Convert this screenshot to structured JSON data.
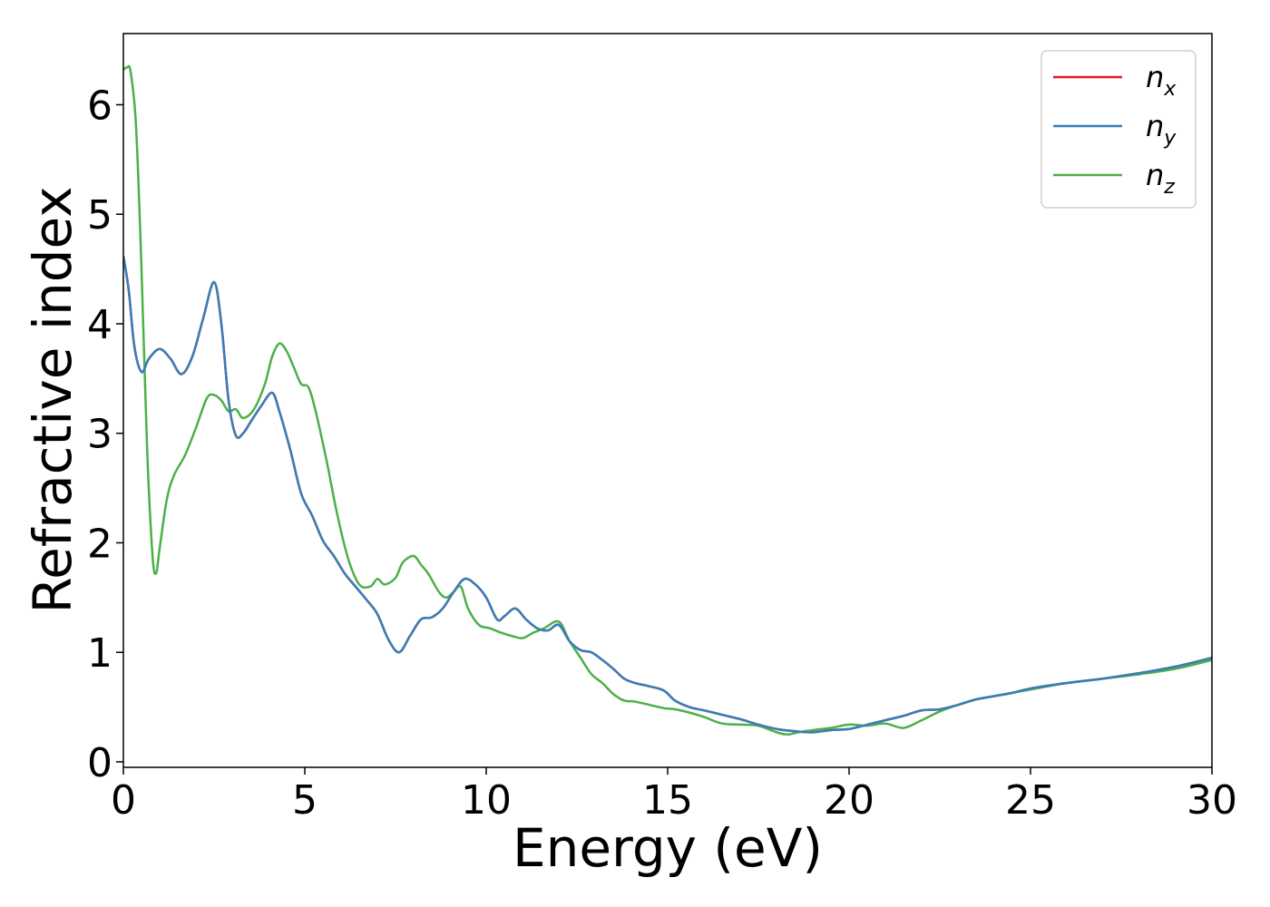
{
  "chart_data": {
    "type": "line",
    "xlabel": "Energy (eV)",
    "ylabel": "Refractive index",
    "xlim": [
      0,
      30
    ],
    "ylim": [
      -0.05,
      6.65
    ],
    "x_ticks": [
      0,
      5,
      10,
      15,
      20,
      25,
      30
    ],
    "y_ticks": [
      0,
      1,
      2,
      3,
      4,
      5,
      6
    ],
    "grid": false,
    "legend_position": "top-right",
    "series": [
      {
        "name": "n",
        "subscript": "x",
        "color": "#e41a1c",
        "x": [
          0,
          0.15,
          0.3,
          0.5,
          0.7,
          1.0,
          1.3,
          1.6,
          1.9,
          2.2,
          2.5,
          2.7,
          2.9,
          3.1,
          3.3,
          3.5,
          3.8,
          4.1,
          4.3,
          4.6,
          4.9,
          5.2,
          5.5,
          5.8,
          6.1,
          6.4,
          6.7,
          7.0,
          7.3,
          7.6,
          7.9,
          8.2,
          8.5,
          8.8,
          9.1,
          9.4,
          9.7,
          10.0,
          10.3,
          10.5,
          10.8,
          11.1,
          11.4,
          11.7,
          12.0,
          12.3,
          12.6,
          12.9,
          13.2,
          13.5,
          13.8,
          14.1,
          14.5,
          14.9,
          15.2,
          15.6,
          16.0,
          16.5,
          17.0,
          17.5,
          18.0,
          18.5,
          19.0,
          19.5,
          20.0,
          20.5,
          21.0,
          21.5,
          22.0,
          22.5,
          23.0,
          23.5,
          24.0,
          24.5,
          25.0,
          26.0,
          27.0,
          28.0,
          29.0,
          30.0
        ],
        "y": [
          4.62,
          4.3,
          3.8,
          3.56,
          3.68,
          3.77,
          3.68,
          3.54,
          3.7,
          4.05,
          4.38,
          4.0,
          3.3,
          2.98,
          3.0,
          3.1,
          3.25,
          3.37,
          3.2,
          2.85,
          2.45,
          2.25,
          2.02,
          1.88,
          1.72,
          1.6,
          1.48,
          1.35,
          1.12,
          1.0,
          1.15,
          1.3,
          1.32,
          1.4,
          1.55,
          1.67,
          1.62,
          1.5,
          1.3,
          1.33,
          1.4,
          1.3,
          1.22,
          1.2,
          1.25,
          1.1,
          1.02,
          1.0,
          0.93,
          0.85,
          0.76,
          0.72,
          0.69,
          0.65,
          0.56,
          0.5,
          0.47,
          0.43,
          0.39,
          0.34,
          0.3,
          0.28,
          0.27,
          0.29,
          0.3,
          0.34,
          0.38,
          0.42,
          0.47,
          0.48,
          0.52,
          0.57,
          0.6,
          0.63,
          0.67,
          0.72,
          0.76,
          0.81,
          0.87,
          0.95
        ]
      },
      {
        "name": "n",
        "subscript": "y",
        "color": "#377eb8",
        "x": [
          0,
          0.15,
          0.3,
          0.5,
          0.7,
          1.0,
          1.3,
          1.6,
          1.9,
          2.2,
          2.5,
          2.7,
          2.9,
          3.1,
          3.3,
          3.5,
          3.8,
          4.1,
          4.3,
          4.6,
          4.9,
          5.2,
          5.5,
          5.8,
          6.1,
          6.4,
          6.7,
          7.0,
          7.3,
          7.6,
          7.9,
          8.2,
          8.5,
          8.8,
          9.1,
          9.4,
          9.7,
          10.0,
          10.3,
          10.5,
          10.8,
          11.1,
          11.4,
          11.7,
          12.0,
          12.3,
          12.6,
          12.9,
          13.2,
          13.5,
          13.8,
          14.1,
          14.5,
          14.9,
          15.2,
          15.6,
          16.0,
          16.5,
          17.0,
          17.5,
          18.0,
          18.5,
          19.0,
          19.5,
          20.0,
          20.5,
          21.0,
          21.5,
          22.0,
          22.5,
          23.0,
          23.5,
          24.0,
          24.5,
          25.0,
          26.0,
          27.0,
          28.0,
          29.0,
          30.0
        ],
        "y": [
          4.62,
          4.3,
          3.8,
          3.56,
          3.68,
          3.77,
          3.68,
          3.54,
          3.7,
          4.05,
          4.38,
          4.0,
          3.3,
          2.98,
          3.0,
          3.1,
          3.25,
          3.37,
          3.2,
          2.85,
          2.45,
          2.25,
          2.02,
          1.88,
          1.72,
          1.6,
          1.48,
          1.35,
          1.12,
          1.0,
          1.15,
          1.3,
          1.32,
          1.4,
          1.55,
          1.67,
          1.62,
          1.5,
          1.3,
          1.33,
          1.4,
          1.3,
          1.22,
          1.2,
          1.25,
          1.1,
          1.02,
          1.0,
          0.93,
          0.85,
          0.76,
          0.72,
          0.69,
          0.65,
          0.56,
          0.5,
          0.47,
          0.43,
          0.39,
          0.34,
          0.3,
          0.28,
          0.27,
          0.29,
          0.3,
          0.34,
          0.38,
          0.42,
          0.47,
          0.48,
          0.52,
          0.57,
          0.6,
          0.63,
          0.67,
          0.72,
          0.76,
          0.81,
          0.87,
          0.95
        ]
      },
      {
        "name": "n",
        "subscript": "z",
        "color": "#4daf4a",
        "x": [
          0,
          0.1,
          0.2,
          0.35,
          0.5,
          0.65,
          0.8,
          0.9,
          1.0,
          1.2,
          1.4,
          1.7,
          2.0,
          2.3,
          2.5,
          2.7,
          2.9,
          3.1,
          3.3,
          3.6,
          3.9,
          4.1,
          4.3,
          4.5,
          4.7,
          4.9,
          5.1,
          5.3,
          5.6,
          5.9,
          6.2,
          6.5,
          6.8,
          7.0,
          7.2,
          7.5,
          7.7,
          8.0,
          8.2,
          8.4,
          8.7,
          8.9,
          9.1,
          9.3,
          9.5,
          9.8,
          10.1,
          10.4,
          10.7,
          11.0,
          11.3,
          11.6,
          12.0,
          12.3,
          12.6,
          12.9,
          13.2,
          13.5,
          13.8,
          14.1,
          14.5,
          14.9,
          15.2,
          15.6,
          16.0,
          16.5,
          17.0,
          17.5,
          18.0,
          18.3,
          18.6,
          19.0,
          19.5,
          20.0,
          20.5,
          21.0,
          21.5,
          22.0,
          22.5,
          23.0,
          23.5,
          24.0,
          24.5,
          25.0,
          26.0,
          27.0,
          28.0,
          29.0,
          30.0
        ],
        "y": [
          6.32,
          6.34,
          6.3,
          5.8,
          4.5,
          2.9,
          1.9,
          1.72,
          1.95,
          2.4,
          2.62,
          2.8,
          3.05,
          3.32,
          3.35,
          3.3,
          3.2,
          3.22,
          3.14,
          3.22,
          3.45,
          3.7,
          3.82,
          3.75,
          3.6,
          3.45,
          3.42,
          3.2,
          2.75,
          2.25,
          1.85,
          1.62,
          1.6,
          1.67,
          1.62,
          1.68,
          1.82,
          1.88,
          1.8,
          1.72,
          1.55,
          1.5,
          1.55,
          1.6,
          1.4,
          1.25,
          1.22,
          1.18,
          1.15,
          1.13,
          1.18,
          1.22,
          1.28,
          1.1,
          0.95,
          0.8,
          0.72,
          0.62,
          0.56,
          0.55,
          0.52,
          0.49,
          0.48,
          0.45,
          0.41,
          0.35,
          0.34,
          0.33,
          0.27,
          0.25,
          0.27,
          0.29,
          0.31,
          0.34,
          0.33,
          0.35,
          0.31,
          0.38,
          0.46,
          0.52,
          0.57,
          0.6,
          0.63,
          0.66,
          0.72,
          0.76,
          0.8,
          0.85,
          0.93
        ]
      }
    ]
  }
}
